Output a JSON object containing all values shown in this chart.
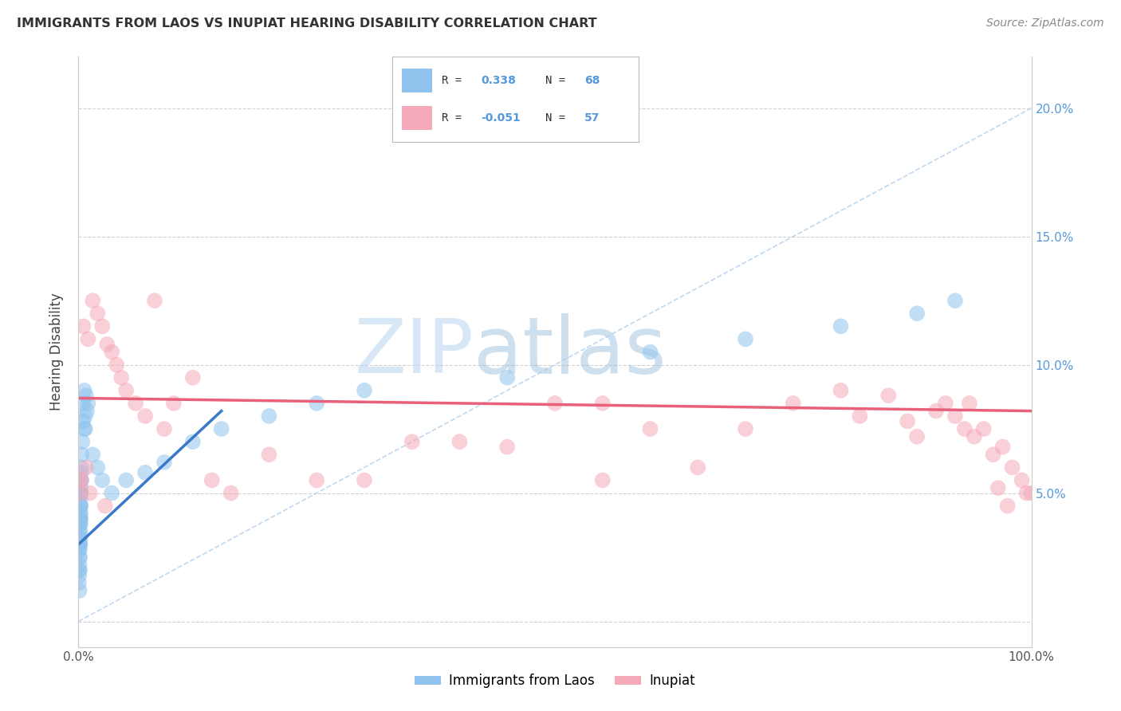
{
  "title": "IMMIGRANTS FROM LAOS VS INUPIAT HEARING DISABILITY CORRELATION CHART",
  "source": "Source: ZipAtlas.com",
  "ylabel": "Hearing Disability",
  "xlim": [
    0.0,
    100.0
  ],
  "ylim": [
    -1.0,
    22.0
  ],
  "legend_r_blue": "R =  0.338",
  "legend_n_blue": "N = 68",
  "legend_r_pink": "R = -0.051",
  "legend_n_pink": "N = 57",
  "legend_label_blue": "Immigrants from Laos",
  "legend_label_pink": "Inupiat",
  "blue_color": "#90C4EE",
  "pink_color": "#F5A8B8",
  "blue_line_color": "#3A78C9",
  "pink_line_color": "#E8607A",
  "watermark_zip": "ZIP",
  "watermark_atlas": "atlas",
  "background_color": "#FFFFFF",
  "grid_color": "#CCCCCC",
  "blue_r": 0.338,
  "blue_n": 68,
  "pink_r": -0.051,
  "pink_n": 57,
  "blue_scatter_x": [
    0.05,
    0.08,
    0.1,
    0.12,
    0.15,
    0.1,
    0.05,
    0.08,
    0.12,
    0.2,
    0.15,
    0.18,
    0.22,
    0.1,
    0.08,
    0.12,
    0.18,
    0.15,
    0.1,
    0.12,
    0.2,
    0.25,
    0.18,
    0.15,
    0.22,
    0.28,
    0.2,
    0.15,
    0.12,
    0.18,
    0.25,
    0.3,
    0.22,
    0.18,
    0.28,
    0.35,
    0.3,
    0.25,
    0.22,
    0.2,
    0.5,
    0.6,
    0.8,
    1.0,
    0.7,
    0.6,
    0.4,
    0.5,
    0.9,
    0.7,
    1.5,
    2.0,
    2.5,
    3.5,
    5.0,
    7.0,
    9.0,
    12.0,
    15.0,
    20.0,
    25.0,
    30.0,
    45.0,
    60.0,
    70.0,
    80.0,
    88.0,
    92.0
  ],
  "blue_scatter_y": [
    3.0,
    2.5,
    4.0,
    3.5,
    5.0,
    2.0,
    1.5,
    2.8,
    3.2,
    4.5,
    3.8,
    3.0,
    4.2,
    2.2,
    1.8,
    3.3,
    3.8,
    2.5,
    1.2,
    2.0,
    4.0,
    5.0,
    3.5,
    3.0,
    4.5,
    5.5,
    4.0,
    3.2,
    2.8,
    3.8,
    5.2,
    6.0,
    4.8,
    4.2,
    5.5,
    6.5,
    5.8,
    5.0,
    4.5,
    4.0,
    8.5,
    9.0,
    8.8,
    8.5,
    8.0,
    7.5,
    7.0,
    7.8,
    8.2,
    7.5,
    6.5,
    6.0,
    5.5,
    5.0,
    5.5,
    5.8,
    6.2,
    7.0,
    7.5,
    8.0,
    8.5,
    9.0,
    9.5,
    10.5,
    11.0,
    11.5,
    12.0,
    12.5
  ],
  "pink_scatter_x": [
    0.1,
    0.5,
    1.0,
    1.5,
    2.0,
    2.5,
    3.0,
    3.5,
    4.0,
    4.5,
    5.0,
    6.0,
    7.0,
    8.0,
    9.0,
    10.0,
    12.0,
    14.0,
    16.0,
    20.0,
    25.0,
    30.0,
    35.0,
    40.0,
    45.0,
    50.0,
    55.0,
    60.0,
    65.0,
    70.0,
    75.0,
    80.0,
    82.0,
    85.0,
    87.0,
    88.0,
    90.0,
    91.0,
    92.0,
    93.0,
    94.0,
    95.0,
    96.0,
    97.0,
    98.0,
    99.0,
    99.5,
    100.0,
    97.5,
    96.5,
    93.5,
    0.3,
    0.2,
    0.8,
    1.2,
    2.8,
    55.0
  ],
  "pink_scatter_y": [
    5.5,
    11.5,
    11.0,
    12.5,
    12.0,
    11.5,
    10.8,
    10.5,
    10.0,
    9.5,
    9.0,
    8.5,
    8.0,
    12.5,
    7.5,
    8.5,
    9.5,
    5.5,
    5.0,
    6.5,
    5.5,
    5.5,
    7.0,
    7.0,
    6.8,
    8.5,
    5.5,
    7.5,
    6.0,
    7.5,
    8.5,
    9.0,
    8.0,
    8.8,
    7.8,
    7.2,
    8.2,
    8.5,
    8.0,
    7.5,
    7.2,
    7.5,
    6.5,
    6.8,
    6.0,
    5.5,
    5.0,
    5.0,
    4.5,
    5.2,
    8.5,
    5.5,
    5.0,
    6.0,
    5.0,
    4.5,
    8.5
  ],
  "blue_line_x0": 0.0,
  "blue_line_y0": 3.0,
  "blue_line_x1": 15.0,
  "blue_line_y1": 8.2,
  "pink_line_x0": 0.0,
  "pink_line_y0": 8.7,
  "pink_line_x1": 100.0,
  "pink_line_y1": 8.2
}
